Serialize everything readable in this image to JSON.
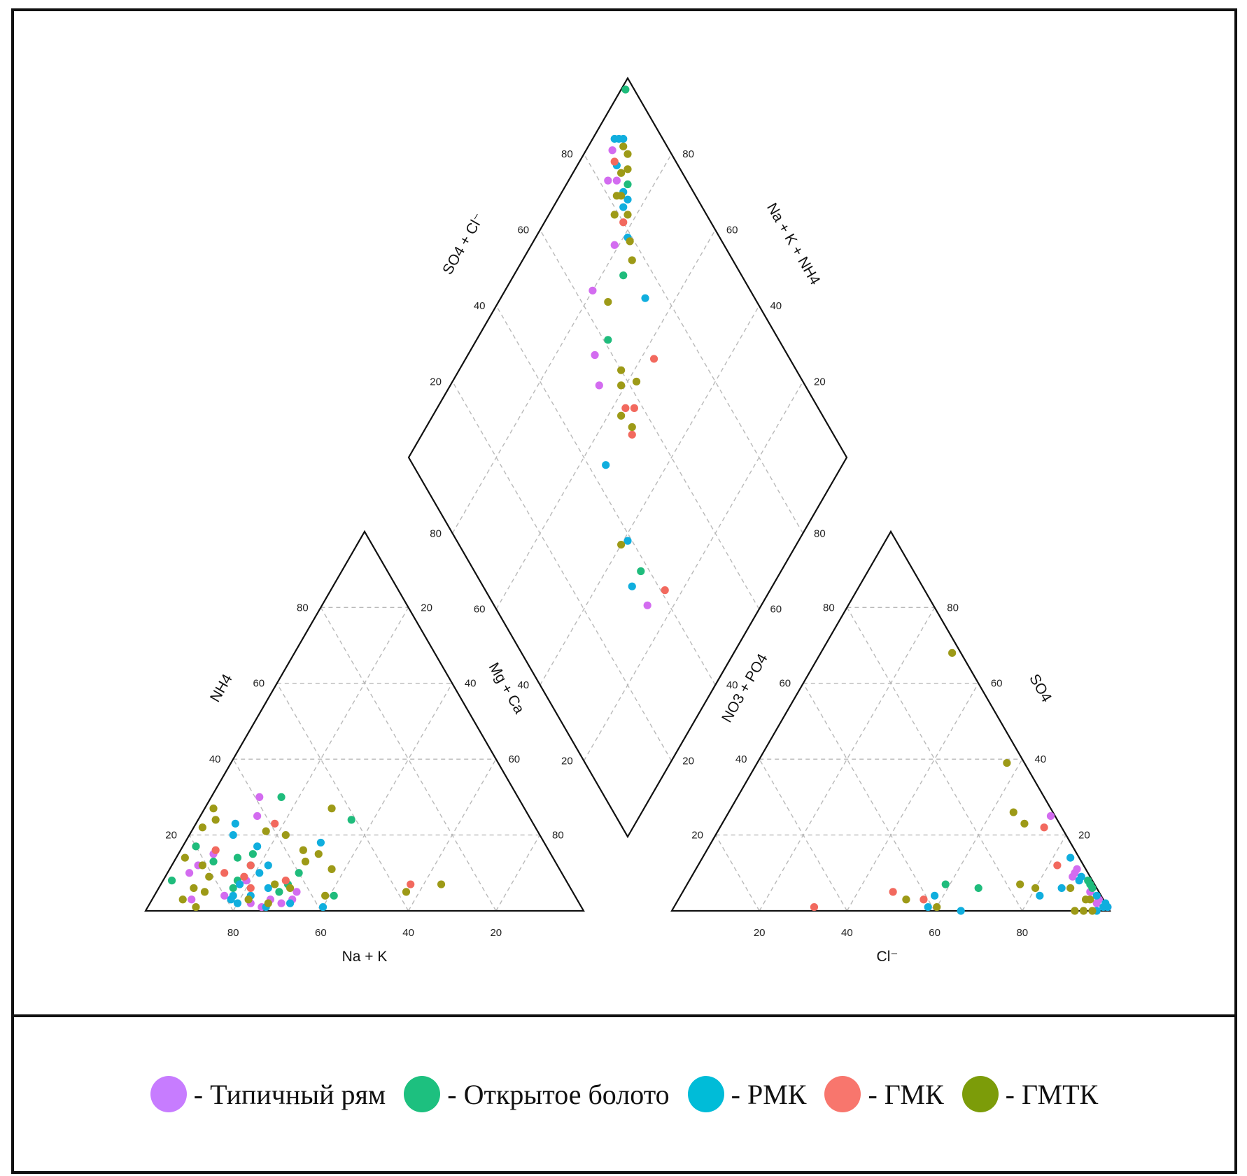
{
  "chart_data": {
    "type": "scatter",
    "subtype": "piper",
    "panels": {
      "cation_triangle": {
        "bottom_axis": "Na + K",
        "left_axis": "NH4",
        "right_axis": "Mg + Ca",
        "bottom_ticks": [
          "80",
          "60",
          "40",
          "20"
        ],
        "left_ticks": [
          "20",
          "40",
          "60",
          "80"
        ],
        "right_ticks": [
          "20",
          "40",
          "60",
          "80"
        ]
      },
      "anion_triangle": {
        "bottom_axis": "Cl⁻",
        "left_axis": "NO3 + PO4",
        "right_axis": "SO4",
        "bottom_ticks": [
          "20",
          "40",
          "60",
          "80"
        ],
        "left_ticks": [
          "80",
          "60",
          "40",
          "20"
        ],
        "right_ticks": [
          "80",
          "60",
          "40",
          "20"
        ]
      },
      "diamond": {
        "upper_left_axis": "SO4 + Cl⁻",
        "upper_right_axis": "Na + K + NH4",
        "upper_left_ticks": [
          "80",
          "60",
          "40",
          "20"
        ],
        "upper_right_ticks": [
          "80",
          "60",
          "40",
          "20"
        ],
        "lower_left_ticks": [
          "20",
          "40",
          "60",
          "80"
        ],
        "lower_right_ticks": [
          "20",
          "40",
          "60",
          "80"
        ]
      }
    },
    "grid": true,
    "series": [
      {
        "name": "Типичный рям",
        "color": "#d36cf0",
        "cation": [
          [
            25,
            62,
            13
          ],
          [
            30,
            59,
            11
          ],
          [
            15,
            77,
            8
          ],
          [
            12,
            82,
            6
          ],
          [
            10,
            85,
            5
          ],
          [
            3,
            88,
            9
          ],
          [
            2,
            75,
            23
          ],
          [
            3,
            70,
            27
          ],
          [
            5,
            63,
            32
          ],
          [
            2,
            68,
            30
          ],
          [
            1,
            73,
            26
          ],
          [
            3,
            65,
            32
          ],
          [
            4,
            80,
            16
          ],
          [
            8,
            73,
            19
          ]
        ],
        "anion": [
          [
            10,
            3,
            87
          ],
          [
            9,
            4,
            87
          ],
          [
            11,
            2,
            87
          ],
          [
            5,
            2,
            93
          ],
          [
            3,
            1,
            96
          ],
          [
            2,
            2,
            96
          ],
          [
            1,
            0,
            99
          ],
          [
            25,
            1,
            74
          ],
          [
            6,
            1,
            93
          ]
        ],
        "diamond": [
          [
            94,
            87
          ],
          [
            91,
            82
          ],
          [
            80,
            64
          ],
          [
            66,
            53
          ],
          [
            71,
            56
          ],
          [
            26,
            35
          ],
          [
            81,
            75
          ],
          [
            89,
            84
          ]
        ]
      },
      {
        "name": "Открытое болото",
        "color": "#1fbc7c",
        "cation": [
          [
            8,
            90,
            2
          ],
          [
            30,
            54,
            16
          ],
          [
            24,
            41,
            35
          ],
          [
            10,
            60,
            30
          ],
          [
            7,
            64,
            29
          ],
          [
            5,
            67,
            28
          ],
          [
            14,
            72,
            14
          ],
          [
            13,
            78,
            9
          ],
          [
            17,
            80,
            3
          ],
          [
            12,
            70,
            18
          ],
          [
            6,
            77,
            17
          ],
          [
            15,
            68,
            17
          ],
          [
            8,
            75,
            17
          ],
          [
            4,
            55,
            41
          ]
        ],
        "anion": [
          [
            6,
            1,
            93
          ],
          [
            8,
            1,
            91
          ],
          [
            7,
            1,
            92
          ],
          [
            7,
            34,
            59
          ],
          [
            6,
            27,
            67
          ]
        ],
        "diamond": [
          [
            99,
            98
          ],
          [
            70,
            61
          ],
          [
            32,
            38
          ],
          [
            75,
            73
          ],
          [
            86,
            86
          ]
        ]
      },
      {
        "name": "РМК",
        "color": "#10aede",
        "cation": [
          [
            20,
            70,
            10
          ],
          [
            23,
            68,
            9
          ],
          [
            17,
            66,
            17
          ],
          [
            12,
            66,
            22
          ],
          [
            10,
            69,
            21
          ],
          [
            7,
            75,
            18
          ],
          [
            6,
            69,
            25
          ],
          [
            3,
            79,
            18
          ],
          [
            4,
            74,
            22
          ],
          [
            1,
            72,
            27
          ],
          [
            2,
            66,
            32
          ],
          [
            1,
            59,
            40
          ],
          [
            2,
            78,
            20
          ],
          [
            18,
            51,
            31
          ],
          [
            4,
            78,
            18
          ]
        ],
        "anion": [
          [
            0,
            34,
            66
          ],
          [
            1,
            41,
            58
          ],
          [
            4,
            38,
            58
          ],
          [
            4,
            14,
            82
          ],
          [
            6,
            8,
            86
          ],
          [
            9,
            2,
            89
          ],
          [
            8,
            3,
            89
          ],
          [
            4,
            1,
            95
          ],
          [
            1,
            0,
            99
          ],
          [
            0,
            3,
            97
          ],
          [
            14,
            2,
            84
          ],
          [
            1,
            1,
            98
          ],
          [
            2,
            0,
            98
          ]
        ],
        "diamond": [
          [
            95,
            89
          ],
          [
            94,
            90
          ],
          [
            93,
            91
          ],
          [
            91,
            86
          ],
          [
            86,
            84
          ],
          [
            84,
            82
          ],
          [
            67,
            75
          ],
          [
            32,
            34
          ],
          [
            39,
            39
          ],
          [
            54,
            44
          ],
          [
            84,
            84
          ],
          [
            79,
            79
          ]
        ]
      },
      {
        "name": "ГМК",
        "color": "#f2695e",
        "cation": [
          [
            23,
            59,
            18
          ],
          [
            12,
            70,
            18
          ],
          [
            9,
            73,
            18
          ],
          [
            16,
            76,
            8
          ],
          [
            6,
            73,
            21
          ],
          [
            7,
            36,
            57
          ],
          [
            8,
            64,
            28
          ],
          [
            10,
            77,
            13
          ]
        ],
        "anion": [
          [
            3,
            41,
            56
          ],
          [
            5,
            47,
            48
          ],
          [
            1,
            67,
            32
          ],
          [
            12,
            6,
            82
          ],
          [
            22,
            4,
            74
          ]
        ],
        "diamond": [
          [
            92,
            86
          ],
          [
            82,
            80
          ],
          [
            57,
            69
          ],
          [
            52,
            54
          ],
          [
            57,
            56
          ],
          [
            24,
            41
          ],
          [
            55,
            58
          ]
        ]
      },
      {
        "name": "ГМТК",
        "color": "#9d9a17",
        "cation": [
          [
            27,
            71,
            2
          ],
          [
            24,
            72,
            4
          ],
          [
            21,
            62,
            17
          ],
          [
            20,
            58,
            22
          ],
          [
            22,
            86,
            2
          ],
          [
            14,
            84,
            2
          ],
          [
            12,
            81,
            7
          ],
          [
            6,
            86,
            8
          ],
          [
            5,
            84,
            11
          ],
          [
            9,
            81,
            10
          ],
          [
            3,
            90,
            7
          ],
          [
            1,
            88,
            11
          ],
          [
            7,
            67,
            26
          ],
          [
            6,
            64,
            30
          ],
          [
            3,
            75,
            22
          ],
          [
            2,
            71,
            27
          ],
          [
            15,
            53,
            32
          ],
          [
            16,
            56,
            28
          ],
          [
            13,
            57,
            30
          ],
          [
            11,
            52,
            37
          ],
          [
            27,
            44,
            29
          ],
          [
            5,
            38,
            57
          ],
          [
            7,
            29,
            64
          ],
          [
            4,
            57,
            39
          ]
        ],
        "anion": [
          [
            68,
            2,
            30
          ],
          [
            39,
            4,
            57
          ],
          [
            26,
            9,
            65
          ],
          [
            23,
            8,
            69
          ],
          [
            6,
            14,
            80
          ],
          [
            6,
            6,
            88
          ],
          [
            3,
            4,
            93
          ],
          [
            3,
            3,
            94
          ],
          [
            0,
            8,
            92
          ],
          [
            0,
            6,
            94
          ],
          [
            0,
            4,
            96
          ],
          [
            7,
            17,
            76
          ],
          [
            1,
            39,
            60
          ],
          [
            3,
            45,
            52
          ]
        ],
        "diamond": [
          [
            87,
            82
          ],
          [
            92,
            90
          ],
          [
            85,
            79
          ],
          [
            86,
            83
          ],
          [
            82,
            82
          ],
          [
            78,
            79
          ],
          [
            75,
            66
          ],
          [
            58,
            62
          ],
          [
            53,
            55
          ],
          [
            90,
            90
          ],
          [
            89,
            86
          ],
          [
            75,
            77
          ],
          [
            57,
            54
          ],
          [
            61,
            58
          ],
          [
            63,
            60
          ],
          [
            40,
            37
          ],
          [
            88,
            88
          ]
        ]
      }
    ]
  },
  "legend": {
    "items": [
      {
        "label": "- Типичный рям",
        "color": "#c77cff"
      },
      {
        "label": "- Открытое болото",
        "color": "#1dc07f"
      },
      {
        "label": "- РМК",
        "color": "#00bcd8"
      },
      {
        "label": "- ГМК",
        "color": "#f8766d"
      },
      {
        "label": "- ГМТК",
        "color": "#7c9c09"
      }
    ]
  }
}
